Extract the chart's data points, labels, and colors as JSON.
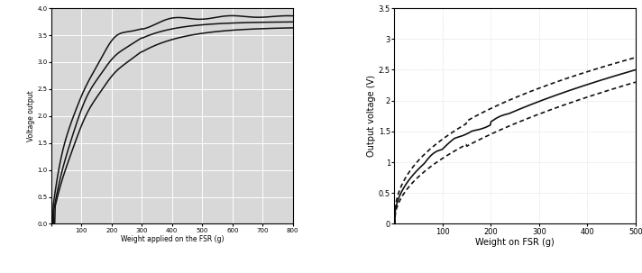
{
  "left": {
    "xlabel": "Weight applied on the FSR (g)",
    "ylabel": "Voltage output",
    "xlim": [
      0,
      800
    ],
    "ylim": [
      0,
      4.0
    ],
    "xticks": [
      0,
      100,
      200,
      300,
      400,
      500,
      600,
      700,
      800
    ],
    "yticks": [
      0,
      0.5,
      1.0,
      1.5,
      2.0,
      2.5,
      3.0,
      3.5,
      4.0
    ],
    "bg_color": "#d8d8d8",
    "grid_color": "#ffffff"
  },
  "right": {
    "xlabel": "Weight on FSR (g)",
    "ylabel": "Output voltage (V)",
    "xlim": [
      0,
      500
    ],
    "ylim": [
      0,
      3.5
    ],
    "xticks": [
      100,
      200,
      300,
      400,
      500
    ],
    "yticks": [
      0.5,
      1.0,
      1.5,
      2.0,
      2.5,
      3.0,
      3.5
    ],
    "bg_color": "#ffffff",
    "grid_color": "#cccccc"
  },
  "line_color": "#111111"
}
